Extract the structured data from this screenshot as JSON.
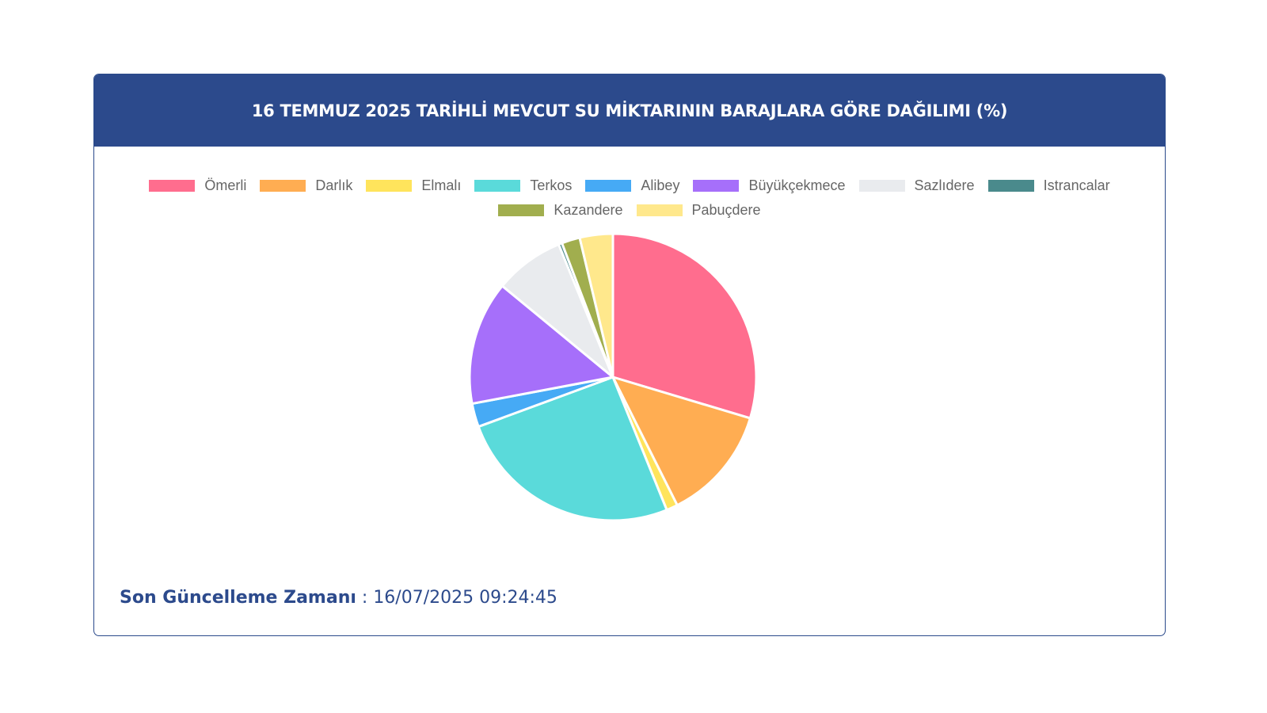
{
  "header": {
    "title": "16 TEMMUZ 2025 TARİHLİ MEVCUT SU MİKTARININ BARAJLARA GÖRE DAĞILIMI (%)"
  },
  "footer": {
    "update_label": "Son Güncelleme Zamanı",
    "update_separator": " : ",
    "update_value": "16/07/2025 09:24:45"
  },
  "chart_data": {
    "type": "pie",
    "title": "16 TEMMUZ 2025 TARİHLİ MEVCUT SU MİKTARININ BARAJLARA GÖRE DAĞILIMI (%)",
    "legend_position": "top",
    "categories": [
      "Ömerli",
      "Darlık",
      "Elmalı",
      "Terkos",
      "Alibey",
      "Büyükçekmece",
      "Sazlıdere",
      "Istrancalar",
      "Kazandere",
      "Pabuçdere"
    ],
    "values": [
      30.2,
      13.2,
      1.3,
      26.0,
      2.7,
      14.2,
      8.0,
      0.4,
      2.1,
      3.8
    ],
    "colors": [
      "#ff6d8e",
      "#ffad52",
      "#ffe45c",
      "#5adada",
      "#46aaf5",
      "#a66ffa",
      "#e9ebee",
      "#4a8a8c",
      "#a1ae4e",
      "#ffe88c"
    ]
  }
}
